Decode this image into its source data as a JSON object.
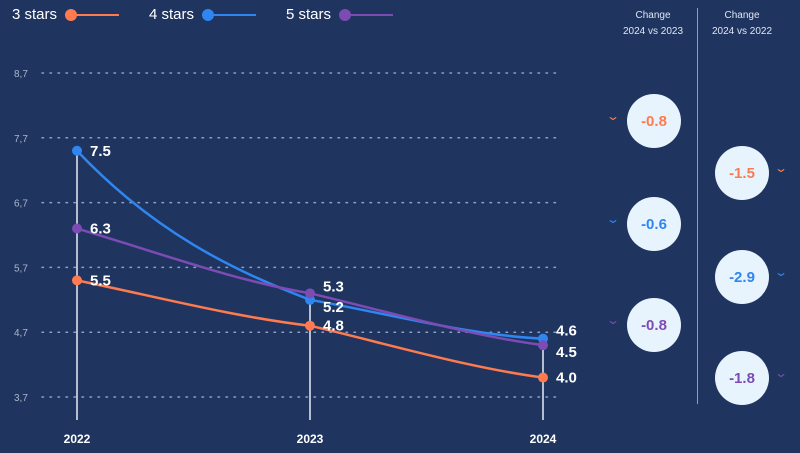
{
  "chart_data": {
    "type": "line",
    "categories": [
      "2022",
      "2023",
      "2024"
    ],
    "series": [
      {
        "name": "3 stars",
        "color": "#ff7a4f",
        "values": [
          5.5,
          4.8,
          4.0
        ]
      },
      {
        "name": "4 stars",
        "color": "#2f86f0",
        "values": [
          7.5,
          5.2,
          4.6
        ]
      },
      {
        "name": "5 stars",
        "color": "#7c4bb3",
        "values": [
          6.3,
          5.3,
          4.5
        ]
      }
    ],
    "value_labels": [
      [
        "5.5",
        "4.8",
        "4.0"
      ],
      [
        "7.5",
        "5.2",
        "4.6"
      ],
      [
        "6.3",
        "5.3",
        "4.5"
      ]
    ],
    "yticks": [
      8.7,
      7.7,
      6.7,
      5.7,
      4.7,
      3.7
    ],
    "ytick_labels": [
      "8,7",
      "7,7",
      "6,7",
      "5,7",
      "4,7",
      "3,7"
    ],
    "ylim": [
      3.7,
      8.7
    ],
    "grid": "dotted horizontal",
    "legend": "top-left"
  },
  "changes": {
    "col1_title": [
      "Change",
      "2024 vs 2023"
    ],
    "col2_title": [
      "Change",
      "2024 vs 2022"
    ],
    "col1": [
      "-0.8",
      "-0.6",
      "-0.8"
    ],
    "col2": [
      "-1.5",
      "-2.9",
      "-1.8"
    ],
    "chevron": "chevron-down-icon"
  }
}
